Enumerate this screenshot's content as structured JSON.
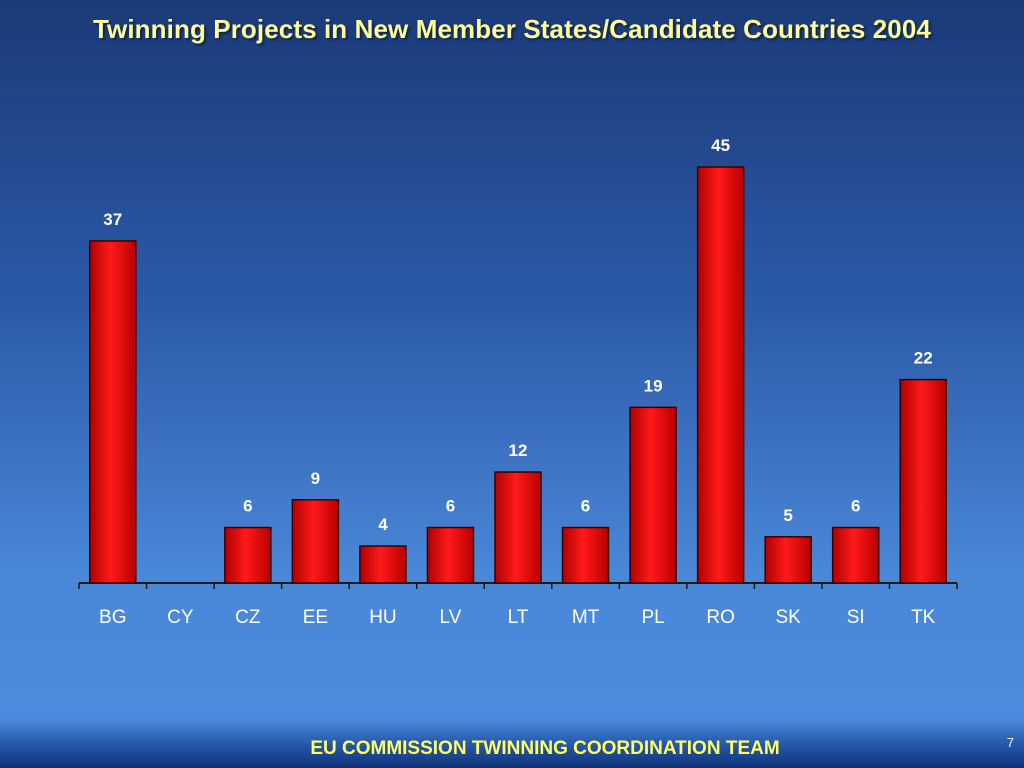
{
  "slide": {
    "title": "Twinning Projects in New Member States/Candidate Countries 2004",
    "footer": "EU COMMISSION TWINNING COORDINATION TEAM",
    "page_number": "7"
  },
  "colors": {
    "bar": "#e60000",
    "bar_edge": "#3a0000",
    "title": "#ffff99",
    "footer": "#ffff66",
    "labels": "#ffffff"
  },
  "chart_data": {
    "type": "bar",
    "title": "Twinning Projects in New Member States/Candidate Countries 2004",
    "categories": [
      "BG",
      "CY",
      "CZ",
      "EE",
      "HU",
      "LV",
      "LT",
      "MT",
      "PL",
      "RO",
      "SK",
      "SI",
      "TK"
    ],
    "values": [
      37,
      0,
      6,
      9,
      4,
      6,
      12,
      6,
      19,
      45,
      5,
      6,
      22
    ],
    "data_labels": [
      "37",
      "",
      "6",
      "9",
      "4",
      "6",
      "12",
      "6",
      "19",
      "45",
      "5",
      "6",
      "22"
    ],
    "ylim": [
      0,
      45
    ],
    "grid": false,
    "legend": "none"
  }
}
